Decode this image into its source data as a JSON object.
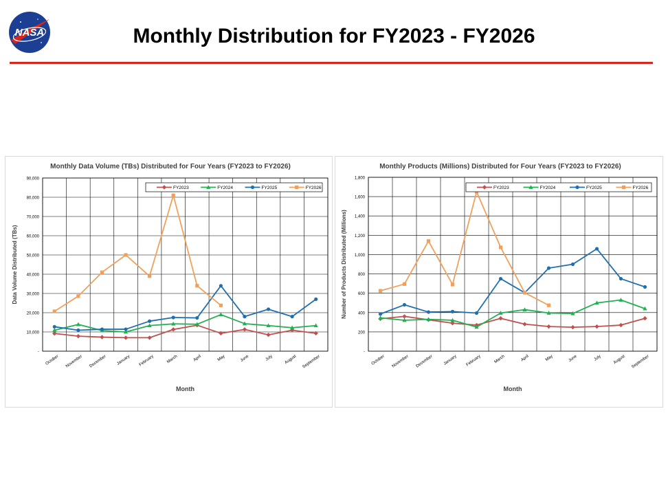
{
  "slide": {
    "title": "Monthly Distribution for FY2023 - FY2026",
    "logo_text": "NASA",
    "accent_color": "#d7261e"
  },
  "chart_data": [
    {
      "type": "line",
      "title": "Monthly Data Volume (TBs) Distributed for Four Years (FY2023 to FY2026)",
      "xlabel": "Month",
      "ylabel": "Data Volume Distributed (TBs)",
      "categories": [
        "October",
        "November",
        "December",
        "January",
        "February",
        "March",
        "April",
        "May",
        "June",
        "July",
        "August",
        "September"
      ],
      "ylim": [
        0,
        90000
      ],
      "yticks": [
        0,
        10000,
        20000,
        30000,
        40000,
        50000,
        60000,
        70000,
        80000,
        90000
      ],
      "ytick_labels": [
        "-",
        "10,000",
        "20,000",
        "30,000",
        "40,000",
        "50,000",
        "60,000",
        "70,000",
        "80,000",
        "90,000"
      ],
      "grid": true,
      "legend_position": "top-right",
      "series": [
        {
          "name": "FY2023",
          "color": "#c0504d",
          "marker": "diamond",
          "values": [
            9200,
            7800,
            7300,
            7000,
            7000,
            11300,
            13500,
            9300,
            11300,
            8500,
            10900,
            9300
          ]
        },
        {
          "name": "FY2024",
          "color": "#20b050",
          "marker": "triangle",
          "values": [
            10900,
            13900,
            10700,
            10000,
            13300,
            14200,
            14000,
            19000,
            14300,
            13300,
            12200,
            13300
          ]
        },
        {
          "name": "FY2025",
          "color": "#1f6fb0",
          "marker": "circle",
          "values": [
            12700,
            10900,
            11400,
            11400,
            15600,
            17500,
            17300,
            34000,
            18000,
            21800,
            18000,
            27000
          ]
        },
        {
          "name": "FY2026",
          "color": "#f0a05a",
          "marker": "square",
          "values": [
            20700,
            28600,
            41000,
            50000,
            39000,
            81000,
            34000,
            23800,
            null,
            null,
            null,
            null
          ]
        }
      ]
    },
    {
      "type": "line",
      "title": "Monthly Products (Millions) Distributed for Four Years (FY2023 to FY2026)",
      "xlabel": "Month",
      "ylabel": "Number of Products Distributed (Millions)",
      "categories": [
        "October",
        "November",
        "December",
        "January",
        "February",
        "March",
        "April",
        "May",
        "June",
        "July",
        "August",
        "September"
      ],
      "ylim": [
        0,
        1800
      ],
      "yticks": [
        0,
        200,
        400,
        600,
        800,
        1000,
        1200,
        1400,
        1600,
        1800
      ],
      "ytick_labels": [
        "-",
        "200",
        "400",
        "600",
        "800",
        "1,000",
        "1,200",
        "1,400",
        "1,600",
        "1,800"
      ],
      "grid": true,
      "legend_position": "top-right",
      "series": [
        {
          "name": "FY2023",
          "color": "#c0504d",
          "marker": "diamond",
          "values": [
            335,
            360,
            325,
            290,
            270,
            340,
            280,
            255,
            248,
            255,
            270,
            340
          ]
        },
        {
          "name": "FY2024",
          "color": "#20b050",
          "marker": "triangle",
          "values": [
            345,
            320,
            330,
            320,
            250,
            395,
            430,
            395,
            390,
            500,
            530,
            440
          ]
        },
        {
          "name": "FY2025",
          "color": "#1f6fb0",
          "marker": "circle",
          "values": [
            385,
            480,
            405,
            410,
            395,
            750,
            605,
            860,
            900,
            1060,
            750,
            665
          ]
        },
        {
          "name": "FY2026",
          "color": "#f0a05a",
          "marker": "square",
          "values": [
            625,
            695,
            1140,
            690,
            1650,
            1075,
            605,
            475,
            null,
            null,
            null,
            null
          ]
        }
      ]
    }
  ]
}
